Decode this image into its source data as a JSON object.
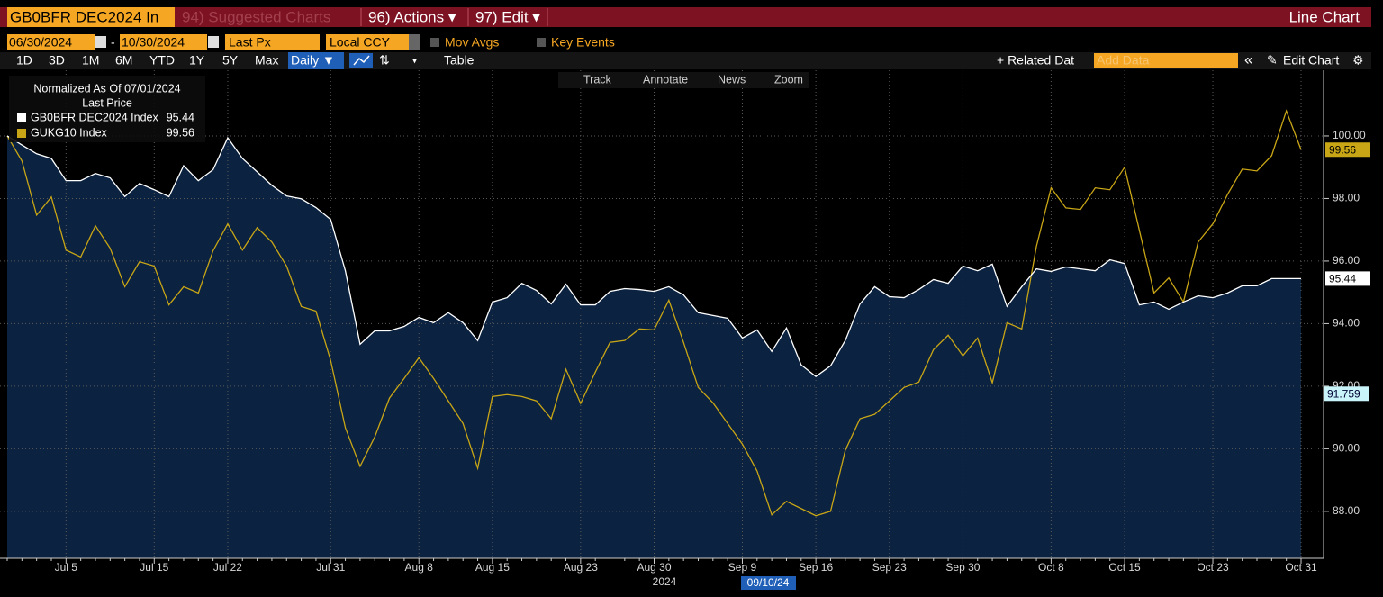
{
  "ui": {
    "ticker": "GB0BFR DEC2024 In",
    "suggested": "94) Suggested Charts",
    "actions": "96) Actions ▾",
    "edit": "97) Edit ▾",
    "chart_kind": "Line Chart",
    "start_date": "06/30/2024",
    "date_sep": "-",
    "end_date": "10/30/2024",
    "field": "Last Px",
    "currency": "Local CCY",
    "mov_avgs": "Mov Avgs",
    "key_events": "Key Events",
    "ranges": [
      "1D",
      "3D",
      "1M",
      "6M",
      "YTD",
      "1Y",
      "5Y",
      "Max"
    ],
    "frequency": "Daily ▼",
    "table": "Table",
    "related": "+ Related Dat",
    "add_data": "Add Data",
    "collapse": "«",
    "edit_chart": "Edit Chart",
    "tools": [
      "Track",
      "Annotate",
      "News",
      "Zoom"
    ]
  },
  "chart_data": {
    "type": "line",
    "legend_title": "Normalized As Of 07/01/2024",
    "legend_subtitle": "Last Price",
    "categories": [
      null,
      null,
      null,
      null,
      "Jul 5",
      null,
      null,
      null,
      null,
      null,
      "Jul 15",
      null,
      null,
      null,
      null,
      "Jul 22",
      null,
      null,
      null,
      null,
      null,
      null,
      "Jul 31",
      null,
      null,
      null,
      null,
      null,
      "Aug 8",
      null,
      null,
      null,
      null,
      "Aug 15",
      null,
      null,
      null,
      null,
      null,
      "Aug 23",
      null,
      null,
      null,
      null,
      "Aug 30",
      null,
      null,
      null,
      null,
      null,
      "Sep 9",
      null,
      null,
      null,
      null,
      "Sep 16",
      null,
      null,
      null,
      null,
      "Sep 23",
      null,
      null,
      null,
      null,
      "Sep 30",
      null,
      null,
      null,
      null,
      null,
      "Oct 8",
      null,
      null,
      null,
      null,
      "Oct 15",
      null,
      null,
      null,
      null,
      null,
      "Oct 23",
      null,
      null,
      null,
      null,
      null,
      "Oct 31"
    ],
    "year_label": "2024",
    "series": [
      {
        "name": "GB0BFR DEC2024 Index",
        "color": "#ffffff",
        "fill": "#0b2240",
        "values": [
          100.0,
          99.71,
          99.43,
          99.28,
          98.57,
          98.57,
          98.8,
          98.66,
          98.06,
          98.48,
          98.28,
          98.06,
          99.05,
          98.57,
          98.92,
          99.94,
          99.28,
          98.85,
          98.42,
          98.08,
          97.99,
          97.71,
          97.33,
          95.69,
          93.34,
          93.77,
          93.77,
          93.91,
          94.2,
          94.03,
          94.35,
          94.03,
          93.46,
          94.69,
          94.83,
          95.29,
          95.06,
          94.63,
          95.26,
          94.6,
          94.6,
          95.03,
          95.12,
          95.09,
          95.03,
          95.18,
          94.92,
          94.35,
          94.26,
          94.17,
          93.54,
          93.8,
          93.11,
          93.86,
          92.68,
          92.31,
          92.65,
          93.46,
          94.63,
          95.18,
          94.86,
          94.83,
          95.09,
          95.41,
          95.29,
          95.84,
          95.69,
          95.9,
          94.55,
          95.18,
          95.75,
          95.67,
          95.81,
          95.75,
          95.69,
          96.04,
          95.92,
          94.6,
          94.69,
          94.46,
          94.69,
          94.89,
          94.83,
          94.98,
          95.21,
          95.21,
          95.44,
          95.44,
          95.44
        ]
      },
      {
        "name": "GUKG10 Index",
        "color": "#c9a616",
        "values": [
          100.0,
          99.2,
          97.47,
          98.05,
          96.35,
          96.13,
          97.13,
          96.41,
          95.18,
          95.98,
          95.84,
          94.6,
          95.18,
          94.98,
          96.33,
          97.19,
          96.35,
          97.07,
          96.61,
          95.84,
          94.55,
          94.4,
          92.82,
          90.67,
          89.44,
          90.38,
          91.62,
          92.25,
          92.91,
          92.25,
          91.53,
          90.81,
          89.38,
          91.67,
          91.73,
          91.67,
          91.53,
          90.96,
          92.54,
          91.45,
          92.45,
          93.4,
          93.46,
          93.83,
          93.8,
          94.75,
          93.4,
          91.96,
          91.47,
          90.81,
          90.15,
          89.29,
          87.89,
          88.32,
          88.09,
          87.86,
          88.0,
          89.95,
          90.96,
          91.1,
          91.53,
          91.96,
          92.13,
          93.17,
          93.63,
          92.97,
          93.54,
          92.11,
          94.03,
          93.83,
          96.47,
          98.34,
          97.7,
          97.65,
          98.34,
          98.28,
          99.0,
          96.99,
          94.98,
          95.46,
          94.69,
          96.61,
          97.19,
          98.13,
          98.94,
          98.88,
          99.37,
          100.8,
          99.56
        ]
      }
    ],
    "ylim": [
      86.5,
      102.1
    ],
    "yticks": [
      {
        "value": 88,
        "label": "88.00"
      },
      {
        "value": 90,
        "label": "90.00"
      },
      {
        "value": 92,
        "label": "92.00"
      },
      {
        "value": 94,
        "label": "94.00"
      },
      {
        "value": 96,
        "label": "96.00"
      },
      {
        "value": 98,
        "label": "98.00"
      },
      {
        "value": 100,
        "label": "100.00"
      }
    ],
    "grid": true,
    "crosshair": {
      "value": 91.759,
      "date_label": "09/10/24"
    }
  }
}
